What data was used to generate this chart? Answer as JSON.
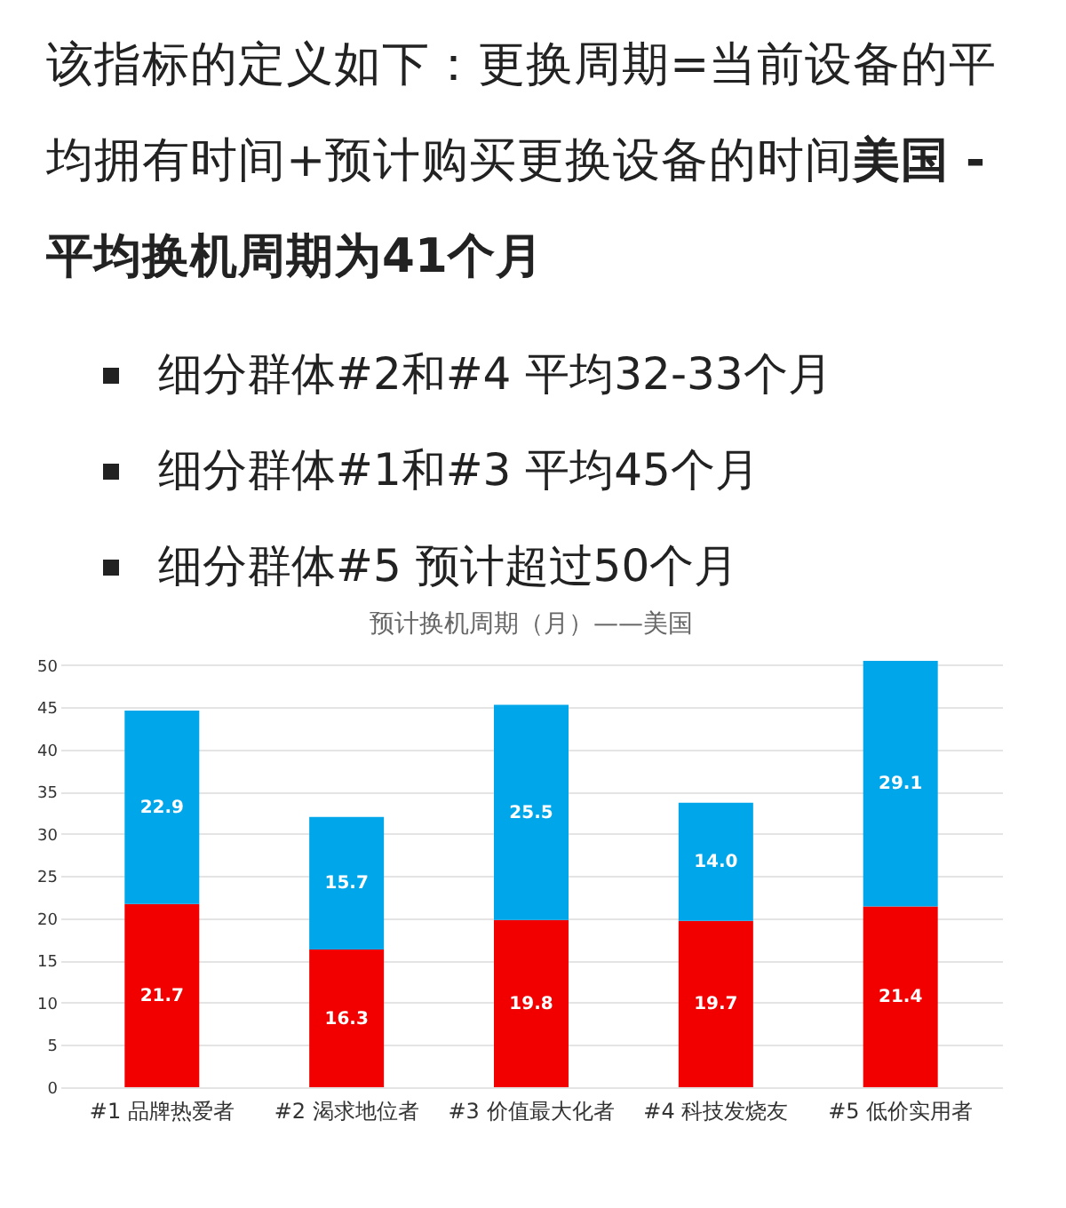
{
  "chart_data": {
    "type": "bar",
    "stacked": true,
    "title": "预计换机周期（月）——美国",
    "annotations": [
      "该指标的定义如下：更换周期=当前设备的平均拥有时间+预计购买更换设备的时间",
      "美国 - 平均换机周期为41个月",
      "细分群体#2和#4 平均32-33个月",
      "细分群体#1和#3 平均45个月",
      "细分群体#5 预计超过50个月"
    ],
    "categories": [
      "#1 品牌热爱者",
      "#2 渴求地位者",
      "#3 价值最大化者",
      "#4 科技发烧友",
      "#5 低价实用者"
    ],
    "series": [
      {
        "color": "#f20000",
        "values": [
          21.7,
          16.3,
          19.8,
          19.7,
          21.4
        ],
        "value_labels": [
          "21.7",
          "16.3",
          "19.8",
          "19.7",
          "21.4"
        ]
      },
      {
        "color": "#00a6ea",
        "values": [
          22.9,
          15.7,
          25.5,
          14.0,
          29.1
        ],
        "value_labels": [
          "22.9",
          "15.7",
          "25.5",
          "14.0",
          "29.1"
        ]
      }
    ],
    "ylim": [
      0,
      50.5
    ],
    "yticks": [
      0,
      5,
      10,
      15,
      20,
      25,
      30,
      35,
      40,
      45,
      50
    ],
    "grid": "y",
    "legend": false
  }
}
